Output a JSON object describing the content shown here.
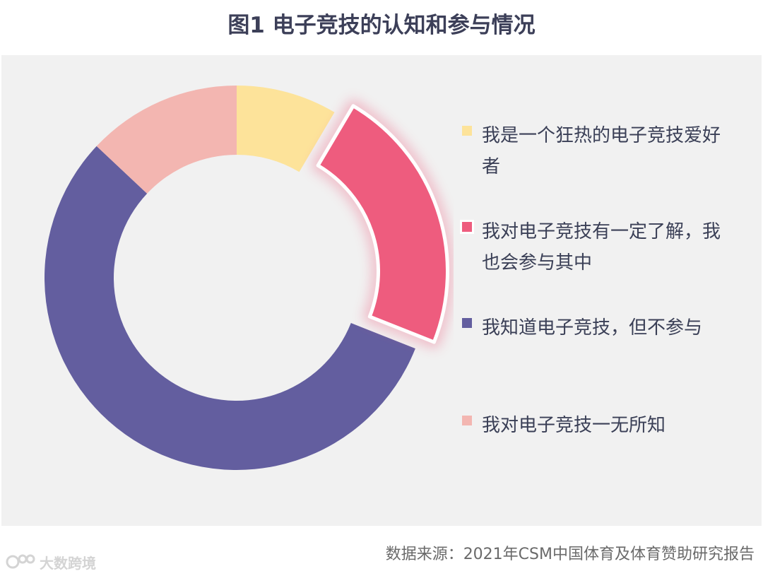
{
  "title": "图1  电子竞技的认知和参与情况",
  "chart_data": {
    "type": "pie",
    "variant": "donut",
    "title": "图1  电子竞技的认知和参与情况",
    "categories": [
      "我是一个狂热的电子竞技爱好者",
      "我对电子竞技有一定了解，我也会参与其中",
      "我知道电子竞技，但不参与",
      "我对电子竞技一无所知"
    ],
    "legend_lines": [
      [
        "我是一个狂热的电子竞技爱好",
        "者"
      ],
      [
        "我对电子竞技有一定了解，我",
        "也会参与其中"
      ],
      [
        "我知道电子竞技，但不参与"
      ],
      [
        "我对电子竞技一无所知"
      ]
    ],
    "values": [
      8.5,
      22.5,
      56.0,
      13.0
    ],
    "colors": [
      "#fde39a",
      "#ee5c7e",
      "#635e9f",
      "#f3b6b1"
    ],
    "highlighted_index": 1,
    "legend_position": "right"
  },
  "source": "数据来源：2021年CSM中国体育及体育赞助研究报告",
  "watermark": "大数跨境"
}
